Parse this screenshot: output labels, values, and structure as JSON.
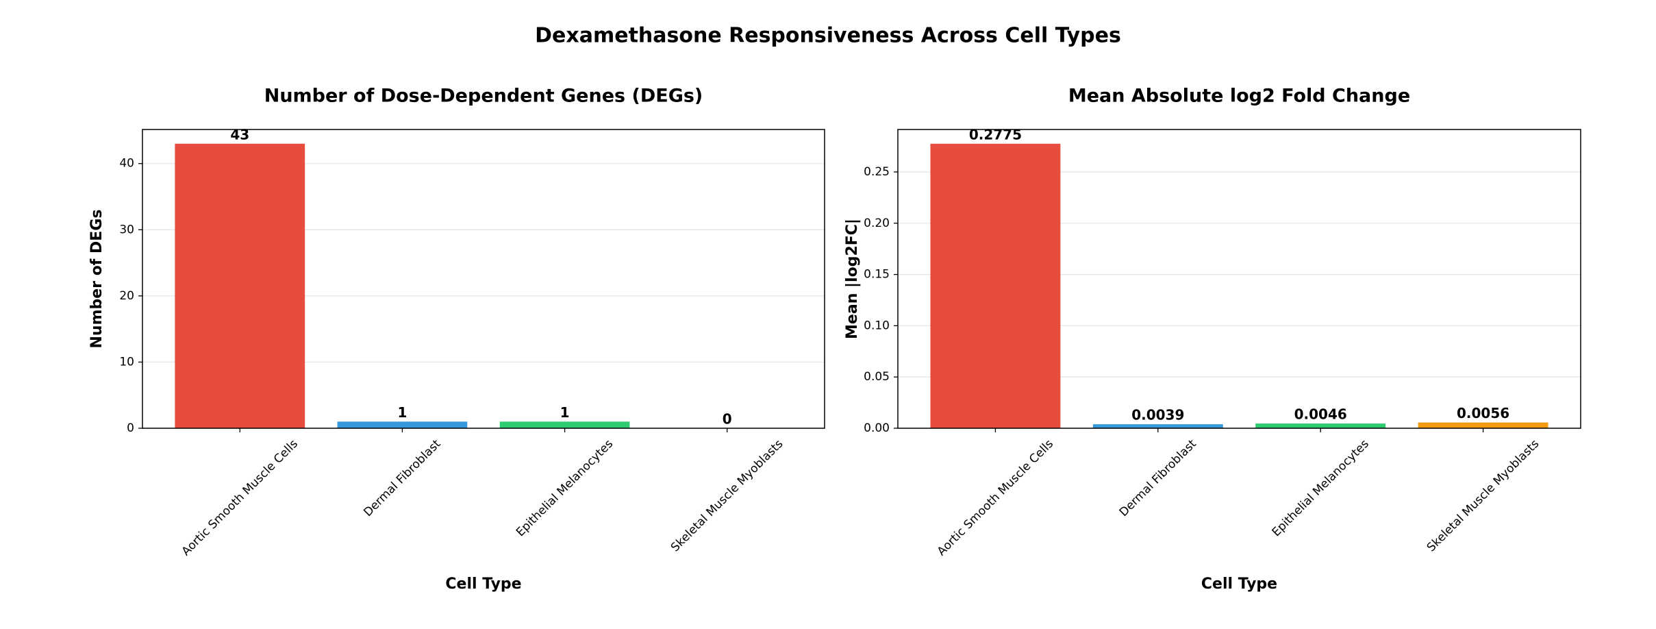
{
  "title": "Dexamethasone Responsiveness Across Cell Types",
  "chart_data": [
    {
      "type": "bar",
      "title": "Number of Dose-Dependent Genes (DEGs)",
      "x_label": "Cell Type",
      "y_label": "Number of DEGs",
      "categories": [
        "Aortic Smooth Muscle Cells",
        "Dermal Fibroblast",
        "Epithelial Melanocytes",
        "Skeletal Muscle Myoblasts"
      ],
      "values": [
        43,
        1,
        1,
        0
      ],
      "colors": [
        "#e74c3c",
        "#3498db",
        "#2ecc71",
        "#f39c12"
      ],
      "ylim": [
        0,
        45.15
      ],
      "yticks": [
        0,
        10,
        20,
        30,
        40
      ],
      "grid": true
    },
    {
      "type": "bar",
      "title": "Mean Absolute log2 Fold Change",
      "x_label": "Cell Type",
      "y_label": "Mean |log2FC|",
      "categories": [
        "Aortic Smooth Muscle Cells",
        "Dermal Fibroblast",
        "Epithelial Melanocytes",
        "Skeletal Muscle Myoblasts"
      ],
      "values": [
        0.2775,
        0.0039,
        0.0046,
        0.0056
      ],
      "colors": [
        "#e74c3c",
        "#3498db",
        "#2ecc71",
        "#f39c12"
      ],
      "ylim": [
        0,
        0.2914
      ],
      "yticks": [
        {
          "value": 0,
          "label": "0.00"
        },
        0.05,
        {
          "value": 0.1,
          "label": "0.10"
        },
        0.15,
        {
          "value": 0.2,
          "label": "0.20"
        },
        0.25
      ],
      "grid": true
    }
  ]
}
